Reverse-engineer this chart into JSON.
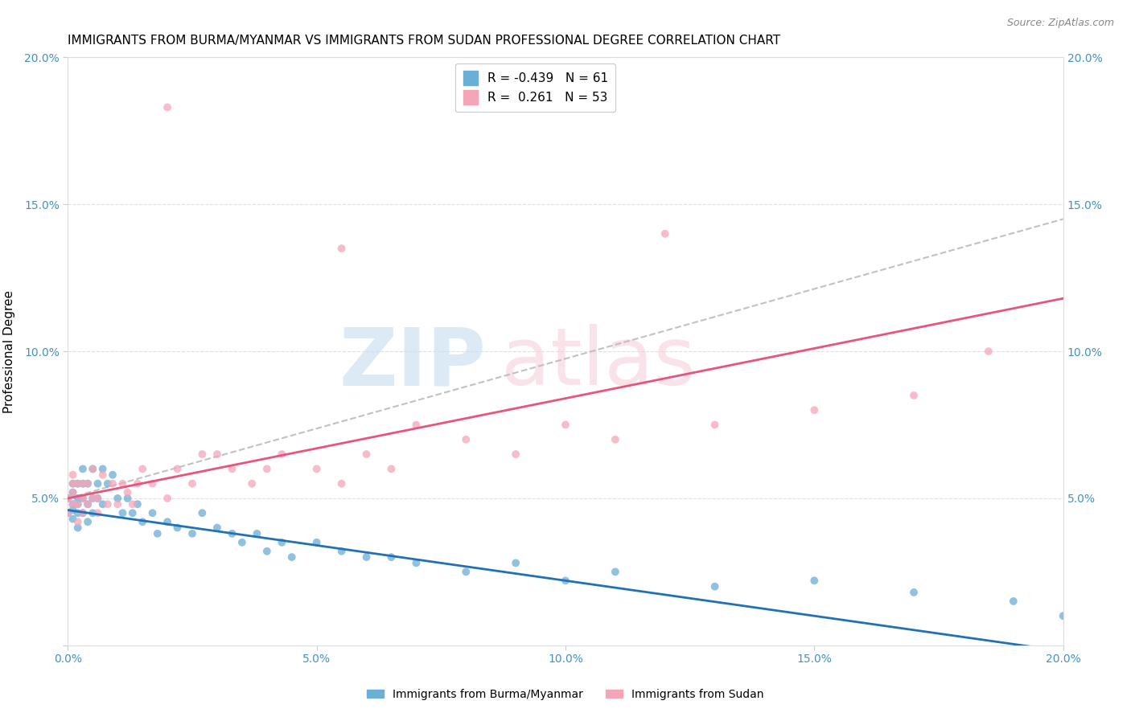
{
  "title": "IMMIGRANTS FROM BURMA/MYANMAR VS IMMIGRANTS FROM SUDAN PROFESSIONAL DEGREE CORRELATION CHART",
  "source": "Source: ZipAtlas.com",
  "ylabel": "Professional Degree",
  "xlim": [
    0.0,
    0.2
  ],
  "ylim": [
    0.0,
    0.2
  ],
  "xticks": [
    0.0,
    0.05,
    0.1,
    0.15,
    0.2
  ],
  "yticks": [
    0.0,
    0.05,
    0.1,
    0.15,
    0.2
  ],
  "xticklabels": [
    "0.0%",
    "5.0%",
    "10.0%",
    "15.0%",
    "20.0%"
  ],
  "yticklabels_left": [
    "",
    "5.0%",
    "10.0%",
    "15.0%",
    "20.0%"
  ],
  "yticklabels_right": [
    "5.0%",
    "10.0%",
    "15.0%",
    "20.0%"
  ],
  "blue_color": "#6baed6",
  "pink_color": "#f4a6b8",
  "blue_line_color": "#2171b5",
  "pink_line_color": "#e8547a",
  "gray_line_color": "#bbbbbb",
  "tick_color": "#4292c6",
  "blue_R": -0.439,
  "blue_N": 61,
  "pink_R": 0.261,
  "pink_N": 53,
  "blue_name": "Immigrants from Burma/Myanmar",
  "pink_name": "Immigrants from Sudan",
  "title_fontsize": 11,
  "source_fontsize": 9,
  "blue_x": [
    0.0,
    0.0,
    0.001,
    0.001,
    0.001,
    0.001,
    0.001,
    0.002,
    0.002,
    0.002,
    0.002,
    0.002,
    0.003,
    0.003,
    0.003,
    0.003,
    0.004,
    0.004,
    0.004,
    0.005,
    0.005,
    0.005,
    0.006,
    0.006,
    0.007,
    0.007,
    0.008,
    0.009,
    0.01,
    0.011,
    0.012,
    0.013,
    0.014,
    0.015,
    0.017,
    0.018,
    0.02,
    0.022,
    0.025,
    0.027,
    0.03,
    0.033,
    0.035,
    0.038,
    0.04,
    0.043,
    0.045,
    0.05,
    0.055,
    0.06,
    0.065,
    0.07,
    0.08,
    0.09,
    0.1,
    0.11,
    0.13,
    0.15,
    0.17,
    0.19,
    0.2
  ],
  "blue_y": [
    0.05,
    0.045,
    0.055,
    0.048,
    0.052,
    0.043,
    0.046,
    0.05,
    0.055,
    0.048,
    0.04,
    0.045,
    0.055,
    0.06,
    0.045,
    0.05,
    0.055,
    0.048,
    0.042,
    0.06,
    0.05,
    0.045,
    0.055,
    0.05,
    0.06,
    0.048,
    0.055,
    0.058,
    0.05,
    0.045,
    0.05,
    0.045,
    0.048,
    0.042,
    0.045,
    0.038,
    0.042,
    0.04,
    0.038,
    0.045,
    0.04,
    0.038,
    0.035,
    0.038,
    0.032,
    0.035,
    0.03,
    0.035,
    0.032,
    0.03,
    0.03,
    0.028,
    0.025,
    0.028,
    0.022,
    0.025,
    0.02,
    0.022,
    0.018,
    0.015,
    0.01
  ],
  "pink_x": [
    0.0,
    0.0,
    0.001,
    0.001,
    0.001,
    0.001,
    0.002,
    0.002,
    0.002,
    0.003,
    0.003,
    0.003,
    0.004,
    0.004,
    0.005,
    0.005,
    0.006,
    0.006,
    0.007,
    0.008,
    0.009,
    0.01,
    0.011,
    0.012,
    0.013,
    0.014,
    0.015,
    0.017,
    0.02,
    0.022,
    0.025,
    0.027,
    0.03,
    0.033,
    0.037,
    0.04,
    0.043,
    0.05,
    0.055,
    0.06,
    0.065,
    0.07,
    0.08,
    0.09,
    0.1,
    0.11,
    0.13,
    0.15,
    0.17,
    0.185,
    0.02,
    0.055,
    0.12
  ],
  "pink_y": [
    0.045,
    0.05,
    0.055,
    0.048,
    0.052,
    0.058,
    0.048,
    0.055,
    0.042,
    0.05,
    0.055,
    0.045,
    0.055,
    0.048,
    0.06,
    0.05,
    0.05,
    0.045,
    0.058,
    0.048,
    0.055,
    0.048,
    0.055,
    0.052,
    0.048,
    0.055,
    0.06,
    0.055,
    0.05,
    0.06,
    0.055,
    0.065,
    0.065,
    0.06,
    0.055,
    0.06,
    0.065,
    0.06,
    0.055,
    0.065,
    0.06,
    0.075,
    0.07,
    0.065,
    0.075,
    0.07,
    0.075,
    0.08,
    0.085,
    0.1,
    0.183,
    0.135,
    0.14
  ],
  "blue_line_start_y": 0.046,
  "blue_line_end_y": -0.002,
  "pink_line_start_y": 0.05,
  "pink_line_end_y": 0.118,
  "gray_line_start_y": 0.05,
  "gray_line_end_y": 0.145
}
